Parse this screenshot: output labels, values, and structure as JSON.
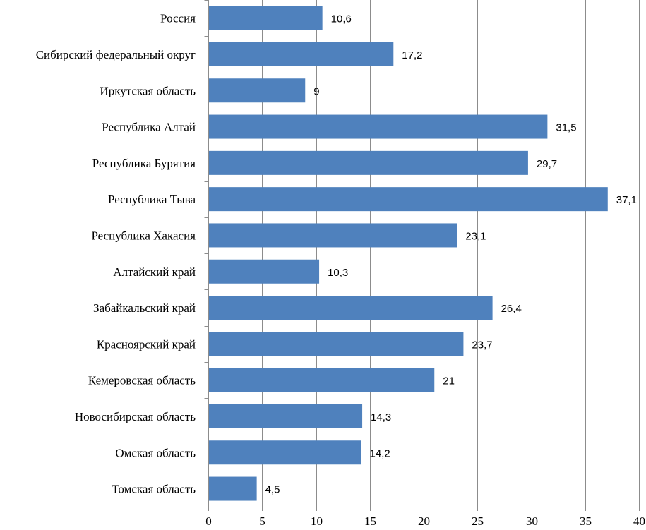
{
  "chart_data": {
    "type": "bar",
    "orientation": "horizontal",
    "categories": [
      "Россия",
      "Сибирский федеральный округ",
      "Иркутская область",
      "Республика Алтай",
      "Республика Бурятия",
      "Республика Тыва",
      "Республика Хакасия",
      "Алтайский край",
      "Забайкальский край",
      "Красноярский край",
      "Кемеровская область",
      "Новосибирская область",
      "Омская область",
      "Томская область"
    ],
    "values": [
      10.6,
      17.2,
      9,
      31.5,
      29.7,
      37.1,
      23.1,
      10.3,
      26.4,
      23.7,
      21,
      14.3,
      14.2,
      4.5
    ],
    "value_labels": [
      "10,6",
      "17,2",
      "9",
      "31,5",
      "29,7",
      "37,1",
      "23,1",
      "10,3",
      "26,4",
      "23,7",
      "21",
      "14,3",
      "14,2",
      "4,5"
    ],
    "xlim": [
      0,
      40
    ],
    "xticks": [
      0,
      5,
      10,
      15,
      20,
      25,
      30,
      35,
      40
    ],
    "xtick_labels": [
      "0",
      "5",
      "10",
      "15",
      "20",
      "25",
      "30",
      "35",
      "40"
    ],
    "grid": true,
    "bar_color": "#4f81bd",
    "title": "",
    "xlabel": "",
    "ylabel": ""
  }
}
